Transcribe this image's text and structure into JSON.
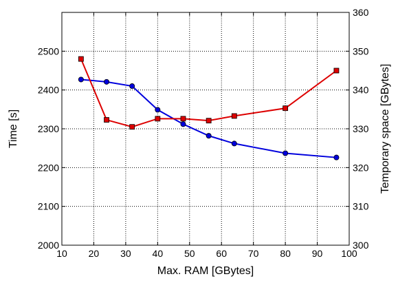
{
  "chart_data": {
    "type": "line",
    "xlabel": "Max. RAM [GBytes]",
    "ylabel": "Time [s]",
    "y2label": "Temporary space [GBytes]",
    "xlim": [
      10,
      100
    ],
    "ylim": [
      2000,
      2600
    ],
    "y2lim": [
      300,
      360
    ],
    "xticks": [
      10,
      20,
      30,
      40,
      50,
      60,
      70,
      80,
      90,
      100
    ],
    "yticks": [
      2000,
      2100,
      2200,
      2300,
      2400,
      2500
    ],
    "y2ticks": [
      300,
      310,
      320,
      330,
      340,
      350,
      360
    ],
    "grid": true,
    "series": [
      {
        "axis": "left",
        "color": "#0000dd",
        "marker": "circle",
        "x": [
          16,
          24,
          32,
          40,
          48,
          56,
          64,
          80,
          96
        ],
        "y": [
          2427,
          2421,
          2410,
          2349,
          2312,
          2282,
          2262,
          2237,
          2226
        ]
      },
      {
        "axis": "right",
        "color": "#dd0000",
        "marker": "square",
        "x": [
          16,
          24,
          32,
          40,
          48,
          56,
          64,
          80,
          96
        ],
        "y": [
          348,
          332.3,
          330.5,
          332.6,
          332.6,
          332.1,
          333.3,
          335.3,
          345
        ]
      }
    ]
  }
}
